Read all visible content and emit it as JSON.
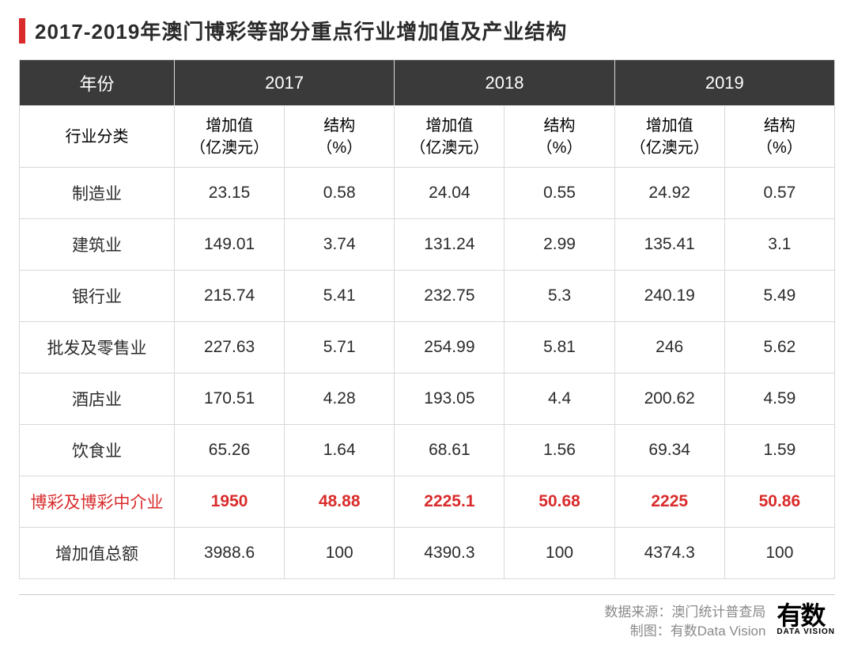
{
  "title": "2017-2019年澳门博彩等部分重点行业增加值及产业结构",
  "colors": {
    "accent": "#d92b2b",
    "header_bg": "#3a3a3a",
    "header_fg": "#ffffff",
    "border": "#d9d9d9",
    "title_fg": "#2b2b2b",
    "body_fg": "#2b2b2b",
    "highlight_fg": "#d92b2b",
    "footer_fg": "#8a8a8a"
  },
  "table": {
    "type": "table",
    "corner_label": "年份",
    "category_label": "行业分类",
    "years": [
      "2017",
      "2018",
      "2019"
    ],
    "sub_headers": {
      "value": "增加值\n（亿澳元）",
      "ratio": "结构\n（%）"
    },
    "rows": [
      {
        "label": "制造业",
        "cells": [
          "23.15",
          "0.58",
          "24.04",
          "0.55",
          "24.92",
          "0.57"
        ],
        "highlight": false
      },
      {
        "label": "建筑业",
        "cells": [
          "149.01",
          "3.74",
          "131.24",
          "2.99",
          "135.41",
          "3.1"
        ],
        "highlight": false
      },
      {
        "label": "银行业",
        "cells": [
          "215.74",
          "5.41",
          "232.75",
          "5.3",
          "240.19",
          "5.49"
        ],
        "highlight": false
      },
      {
        "label": "批发及零售业",
        "cells": [
          "227.63",
          "5.71",
          "254.99",
          "5.81",
          "246",
          "5.62"
        ],
        "highlight": false
      },
      {
        "label": "酒店业",
        "cells": [
          "170.51",
          "4.28",
          "193.05",
          "4.4",
          "200.62",
          "4.59"
        ],
        "highlight": false
      },
      {
        "label": "饮食业",
        "cells": [
          "65.26",
          "1.64",
          "68.61",
          "1.56",
          "69.34",
          "1.59"
        ],
        "highlight": false
      },
      {
        "label": "博彩及博彩中介业",
        "cells": [
          "1950",
          "48.88",
          "2225.1",
          "50.68",
          "2225",
          "50.86"
        ],
        "highlight": true
      },
      {
        "label": "增加值总额",
        "cells": [
          "3988.6",
          "100",
          "4390.3",
          "100",
          "4374.3",
          "100"
        ],
        "highlight": false
      }
    ]
  },
  "footer": {
    "source": "数据来源：澳门统计普查局",
    "credit": "制图：有数Data Vision",
    "logo_big": "有数",
    "logo_small": "DATA VISION"
  }
}
